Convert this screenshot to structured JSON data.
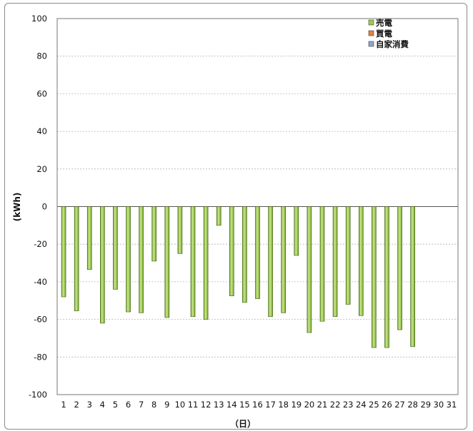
{
  "chart_data": {
    "type": "bar",
    "title": "",
    "xlabel": "（日）",
    "ylabel": "(kWh)",
    "ylim": [
      -100,
      100
    ],
    "yticks": [
      100,
      80,
      60,
      40,
      20,
      0,
      -20,
      -40,
      -60,
      -80,
      -100
    ],
    "categories": [
      "1",
      "2",
      "3",
      "4",
      "5",
      "6",
      "7",
      "8",
      "9",
      "10",
      "11",
      "12",
      "13",
      "14",
      "15",
      "16",
      "17",
      "18",
      "19",
      "20",
      "21",
      "22",
      "23",
      "24",
      "25",
      "26",
      "27",
      "28",
      "29",
      "30",
      "31"
    ],
    "series": [
      {
        "name": "売電",
        "color": "#9ccc4a",
        "values": [
          -48,
          -55.5,
          -33.5,
          -62,
          -44,
          -56,
          -56.5,
          -29,
          -59,
          -25,
          -58.5,
          -60,
          -10,
          -47.5,
          -51,
          -49,
          -58.5,
          -56.5,
          -26,
          -67,
          -61,
          -58.5,
          -52,
          -58,
          -75,
          -75,
          -65.5,
          -74.5,
          null,
          null,
          null
        ]
      },
      {
        "name": "買電",
        "color": "#e8823a",
        "values": [
          0,
          0,
          0,
          0,
          0,
          0,
          0,
          0,
          0,
          0,
          0,
          0,
          0,
          0,
          0,
          0,
          0,
          0,
          0,
          0,
          0,
          0,
          0,
          0,
          0,
          0,
          0,
          0,
          null,
          null,
          null
        ]
      },
      {
        "name": "自家消費",
        "color": "#8fa6c8",
        "values": [
          0,
          0,
          0,
          0,
          0,
          0,
          0,
          0,
          0,
          0,
          0,
          0,
          0,
          0,
          0,
          0,
          0,
          0,
          0,
          0,
          0,
          0,
          0,
          0,
          0,
          0,
          0,
          0,
          null,
          null,
          null
        ]
      }
    ],
    "grid": true,
    "legend_position": "top-right"
  }
}
